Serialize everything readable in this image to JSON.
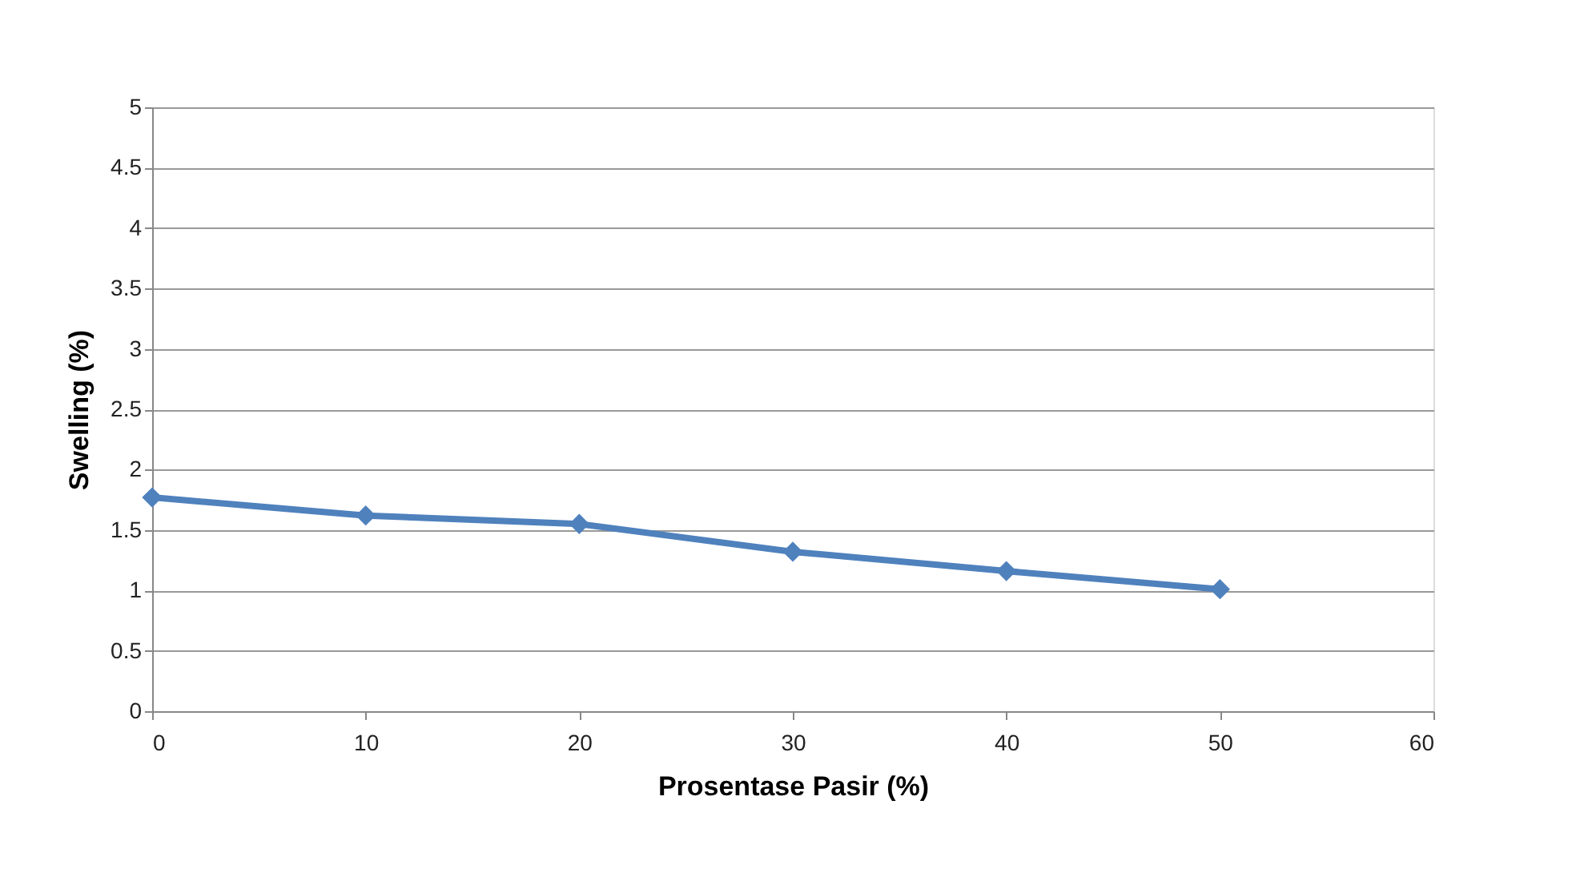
{
  "chart_data": {
    "type": "line",
    "xlabel": "Prosentase Pasir (%)",
    "ylabel": "Swelling (%)",
    "x": [
      0,
      10,
      20,
      30,
      40,
      50
    ],
    "series": [
      {
        "color": "#4f81bd",
        "values": [
          1.77,
          1.62,
          1.55,
          1.32,
          1.16,
          1.01
        ]
      }
    ],
    "xlim": [
      0,
      60
    ],
    "xticks": [
      0,
      10,
      20,
      30,
      40,
      50,
      60
    ],
    "ylim": [
      0,
      5
    ],
    "yticks": [
      0,
      0.5,
      1,
      1.5,
      2,
      2.5,
      3,
      3.5,
      4,
      4.5,
      5
    ],
    "grid": "y",
    "marker": "diamond",
    "line_style": "solid"
  }
}
